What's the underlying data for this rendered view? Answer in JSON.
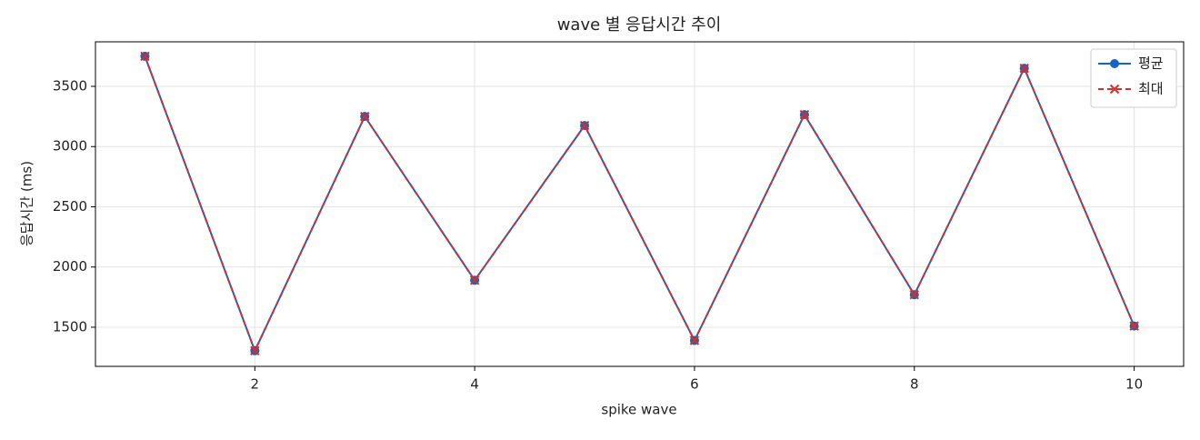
{
  "chart_data": {
    "type": "line",
    "title": "wave 별 응답시간 추이",
    "x_label": "spike wave",
    "y_label": "응답시간 (ms)",
    "x": [
      1,
      2,
      3,
      4,
      5,
      6,
      7,
      8,
      9,
      10
    ],
    "series": [
      {
        "name": "평균",
        "color": "#1565c0",
        "values": [
          3750,
          1305,
          3250,
          1890,
          3175,
          1390,
          3265,
          1770,
          3650,
          1510
        ]
      },
      {
        "name": "최대",
        "color": "#d32f2f",
        "values": [
          3750,
          1305,
          3250,
          1890,
          3175,
          1390,
          3265,
          1770,
          3650,
          1510
        ]
      }
    ],
    "xlim": [
      0.55,
      10.45
    ],
    "xticks": [
      2,
      4,
      6,
      8,
      10
    ],
    "ylim": [
      1175,
      3870
    ],
    "yticks": [
      1500,
      2000,
      2500,
      3000,
      3500
    ],
    "grid": true,
    "legend": "upper right"
  }
}
